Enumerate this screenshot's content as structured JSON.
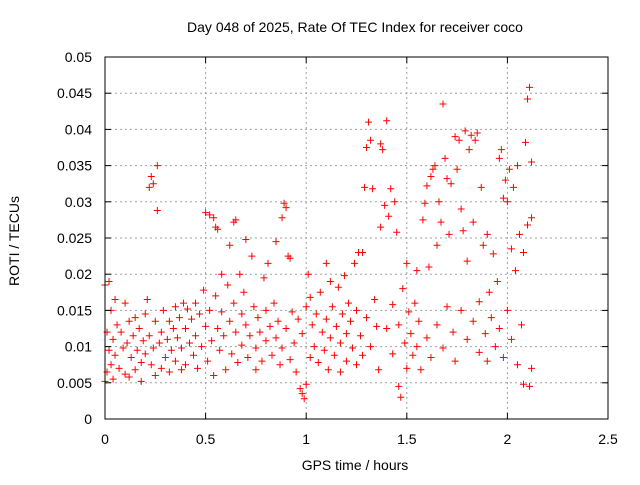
{
  "colors": {
    "background": "#ffffff",
    "axis": "#000000",
    "grid": "#a0a0a0",
    "marker": "#ff0000"
  },
  "chart_data": {
    "type": "scatter",
    "title": "Day 048 of 2025, Rate Of TEC Index for receiver coco",
    "xlabel": "GPS time / hours",
    "ylabel": "ROTI / TECUs",
    "xlim": [
      0,
      2.5
    ],
    "ylim": [
      0,
      0.05
    ],
    "x_ticks": [
      "0",
      "0.5",
      "1",
      "1.5",
      "2",
      "2.5"
    ],
    "y_ticks": [
      "0",
      "0.005",
      "0.01",
      "0.015",
      "0.02",
      "0.025",
      "0.03",
      "0.035",
      "0.04",
      "0.045",
      "0.05"
    ],
    "x_tick_values": [
      0,
      0.5,
      1,
      1.5,
      2,
      2.5
    ],
    "y_tick_values": [
      0,
      0.005,
      0.01,
      0.015,
      0.02,
      0.025,
      0.03,
      0.035,
      0.04,
      0.045,
      0.05
    ],
    "grid": true,
    "marker": "plus",
    "series": [
      {
        "color": "#ff0000",
        "points": [
          [
            0.0,
            0.0185
          ],
          [
            0.0,
            0.0052
          ],
          [
            0.01,
            0.012
          ],
          [
            0.01,
            0.0065
          ],
          [
            0.02,
            0.019
          ],
          [
            0.02,
            0.0095
          ],
          [
            0.03,
            0.015
          ],
          [
            0.03,
            0.0075
          ],
          [
            0.04,
            0.011
          ],
          [
            0.04,
            0.0055
          ],
          [
            0.05,
            0.0165
          ],
          [
            0.05,
            0.0088
          ],
          [
            0.06,
            0.013
          ],
          [
            0.07,
            0.007
          ],
          [
            0.08,
            0.012
          ],
          [
            0.09,
            0.0098
          ],
          [
            0.1,
            0.016
          ],
          [
            0.1,
            0.0062
          ],
          [
            0.11,
            0.0105
          ],
          [
            0.12,
            0.0135
          ],
          [
            0.12,
            0.0058
          ],
          [
            0.13,
            0.0085
          ],
          [
            0.14,
            0.0115
          ],
          [
            0.15,
            0.014
          ],
          [
            0.15,
            0.0068
          ],
          [
            0.16,
            0.0095
          ],
          [
            0.17,
            0.0125
          ],
          [
            0.18,
            0.0078
          ],
          [
            0.18,
            0.0052
          ],
          [
            0.19,
            0.0108
          ],
          [
            0.2,
            0.0145
          ],
          [
            0.2,
            0.009
          ],
          [
            0.21,
            0.0165
          ],
          [
            0.22,
            0.032
          ],
          [
            0.22,
            0.0115
          ],
          [
            0.23,
            0.0335
          ],
          [
            0.23,
            0.0075
          ],
          [
            0.24,
            0.0325
          ],
          [
            0.24,
            0.0098
          ],
          [
            0.25,
            0.0135
          ],
          [
            0.25,
            0.006
          ],
          [
            0.26,
            0.035
          ],
          [
            0.26,
            0.0288
          ],
          [
            0.27,
            0.0105
          ],
          [
            0.28,
            0.012
          ],
          [
            0.28,
            0.007
          ],
          [
            0.29,
            0.015
          ],
          [
            0.3,
            0.0085
          ],
          [
            0.31,
            0.011
          ],
          [
            0.32,
            0.0135
          ],
          [
            0.32,
            0.0065
          ],
          [
            0.33,
            0.0095
          ],
          [
            0.34,
            0.0125
          ],
          [
            0.35,
            0.0155
          ],
          [
            0.35,
            0.008
          ],
          [
            0.36,
            0.0112
          ],
          [
            0.37,
            0.014
          ],
          [
            0.38,
            0.0068
          ],
          [
            0.38,
            0.0098
          ],
          [
            0.39,
            0.016
          ],
          [
            0.4,
            0.0125
          ],
          [
            0.4,
            0.0075
          ],
          [
            0.41,
            0.0152
          ],
          [
            0.42,
            0.0105
          ],
          [
            0.43,
            0.0138
          ],
          [
            0.44,
            0.0088
          ],
          [
            0.45,
            0.016
          ],
          [
            0.45,
            0.0115
          ],
          [
            0.46,
            0.007
          ],
          [
            0.47,
            0.0145
          ],
          [
            0.48,
            0.01
          ],
          [
            0.49,
            0.0178
          ],
          [
            0.5,
            0.0128
          ],
          [
            0.5,
            0.0285
          ],
          [
            0.51,
            0.008
          ],
          [
            0.52,
            0.0282
          ],
          [
            0.52,
            0.015
          ],
          [
            0.53,
            0.0108
          ],
          [
            0.54,
            0.0278
          ],
          [
            0.54,
            0.006
          ],
          [
            0.55,
            0.0265
          ],
          [
            0.55,
            0.017
          ],
          [
            0.56,
            0.0262
          ],
          [
            0.56,
            0.0125
          ],
          [
            0.57,
            0.0095
          ],
          [
            0.58,
            0.0148
          ],
          [
            0.58,
            0.02
          ],
          [
            0.59,
            0.0115
          ],
          [
            0.6,
            0.0068
          ],
          [
            0.61,
            0.0185
          ],
          [
            0.62,
            0.0135
          ],
          [
            0.62,
            0.024
          ],
          [
            0.63,
            0.009
          ],
          [
            0.64,
            0.0272
          ],
          [
            0.64,
            0.016
          ],
          [
            0.65,
            0.0275
          ],
          [
            0.65,
            0.012
          ],
          [
            0.66,
            0.0078
          ],
          [
            0.67,
            0.02
          ],
          [
            0.68,
            0.0145
          ],
          [
            0.68,
            0.0102
          ],
          [
            0.69,
            0.0175
          ],
          [
            0.7,
            0.013
          ],
          [
            0.7,
            0.0248
          ],
          [
            0.71,
            0.0085
          ],
          [
            0.72,
            0.0115
          ],
          [
            0.73,
            0.0225
          ],
          [
            0.74,
            0.0155
          ],
          [
            0.75,
            0.0098
          ],
          [
            0.75,
            0.0068
          ],
          [
            0.76,
            0.014
          ],
          [
            0.77,
            0.012
          ],
          [
            0.78,
            0.008
          ],
          [
            0.79,
            0.0195
          ],
          [
            0.8,
            0.015
          ],
          [
            0.8,
            0.0108
          ],
          [
            0.81,
            0.0215
          ],
          [
            0.82,
            0.0128
          ],
          [
            0.83,
            0.0088
          ],
          [
            0.84,
            0.016
          ],
          [
            0.85,
            0.0245
          ],
          [
            0.85,
            0.0112
          ],
          [
            0.86,
            0.0135
          ],
          [
            0.87,
            0.0075
          ],
          [
            0.88,
            0.0278
          ],
          [
            0.88,
            0.0098
          ],
          [
            0.89,
            0.0298
          ],
          [
            0.9,
            0.0292
          ],
          [
            0.9,
            0.0125
          ],
          [
            0.91,
            0.0225
          ],
          [
            0.92,
            0.0222
          ],
          [
            0.92,
            0.0082
          ],
          [
            0.93,
            0.0148
          ],
          [
            0.94,
            0.0105
          ],
          [
            0.95,
            0.0065
          ],
          [
            0.96,
            0.0138
          ],
          [
            0.97,
            0.0042
          ],
          [
            0.98,
            0.0035
          ],
          [
            0.98,
            0.0118
          ],
          [
            0.99,
            0.0028
          ],
          [
            1.0,
            0.0048
          ],
          [
            1.0,
            0.0155
          ],
          [
            1.01,
            0.02
          ],
          [
            1.02,
            0.0085
          ],
          [
            1.02,
            0.0168
          ],
          [
            1.03,
            0.013
          ],
          [
            1.04,
            0.01
          ],
          [
            1.05,
            0.0145
          ],
          [
            1.06,
            0.0078
          ],
          [
            1.07,
            0.0175
          ],
          [
            1.08,
            0.012
          ],
          [
            1.09,
            0.0095
          ],
          [
            1.1,
            0.0215
          ],
          [
            1.1,
            0.0138
          ],
          [
            1.11,
            0.0068
          ],
          [
            1.12,
            0.019
          ],
          [
            1.12,
            0.0112
          ],
          [
            1.13,
            0.0155
          ],
          [
            1.14,
            0.0088
          ],
          [
            1.15,
            0.0128
          ],
          [
            1.16,
            0.0182
          ],
          [
            1.17,
            0.0105
          ],
          [
            1.17,
            0.0065
          ],
          [
            1.18,
            0.0145
          ],
          [
            1.19,
            0.0198
          ],
          [
            1.2,
            0.0118
          ],
          [
            1.2,
            0.008
          ],
          [
            1.21,
            0.016
          ],
          [
            1.22,
            0.0135
          ],
          [
            1.23,
            0.0098
          ],
          [
            1.24,
            0.0215
          ],
          [
            1.25,
            0.015
          ],
          [
            1.25,
            0.0075
          ],
          [
            1.26,
            0.023
          ],
          [
            1.27,
            0.0115
          ],
          [
            1.28,
            0.023
          ],
          [
            1.28,
            0.0088
          ],
          [
            1.29,
            0.032
          ],
          [
            1.3,
            0.0375
          ],
          [
            1.3,
            0.014
          ],
          [
            1.31,
            0.041
          ],
          [
            1.32,
            0.0385
          ],
          [
            1.32,
            0.01
          ],
          [
            1.33,
            0.0318
          ],
          [
            1.34,
            0.0165
          ],
          [
            1.35,
            0.0128
          ],
          [
            1.36,
            0.0068
          ],
          [
            1.37,
            0.038
          ],
          [
            1.37,
            0.0265
          ],
          [
            1.38,
            0.0372
          ],
          [
            1.39,
            0.0295
          ],
          [
            1.4,
            0.0412
          ],
          [
            1.4,
            0.0125
          ],
          [
            1.41,
            0.028
          ],
          [
            1.42,
            0.0318
          ],
          [
            1.43,
            0.0158
          ],
          [
            1.43,
            0.009
          ],
          [
            1.44,
            0.03
          ],
          [
            1.45,
            0.0258
          ],
          [
            1.46,
            0.013
          ],
          [
            1.46,
            0.0045
          ],
          [
            1.47,
            0.003
          ],
          [
            1.48,
            0.018
          ],
          [
            1.49,
            0.0105
          ],
          [
            1.5,
            0.0215
          ],
          [
            1.5,
            0.007
          ],
          [
            1.51,
            0.0148
          ],
          [
            1.52,
            0.0118
          ],
          [
            1.53,
            0.0088
          ],
          [
            1.54,
            0.016
          ],
          [
            1.55,
            0.0205
          ],
          [
            1.55,
            0.01
          ],
          [
            1.56,
            0.0135
          ],
          [
            1.57,
            0.0068
          ],
          [
            1.58,
            0.0275
          ],
          [
            1.59,
            0.0298
          ],
          [
            1.6,
            0.0322
          ],
          [
            1.6,
            0.0112
          ],
          [
            1.61,
            0.021
          ],
          [
            1.62,
            0.0335
          ],
          [
            1.62,
            0.0085
          ],
          [
            1.63,
            0.0345
          ],
          [
            1.64,
            0.035
          ],
          [
            1.65,
            0.024
          ],
          [
            1.65,
            0.013
          ],
          [
            1.66,
            0.03
          ],
          [
            1.67,
            0.0272
          ],
          [
            1.68,
            0.0435
          ],
          [
            1.68,
            0.0098
          ],
          [
            1.69,
            0.036
          ],
          [
            1.7,
            0.0332
          ],
          [
            1.7,
            0.0155
          ],
          [
            1.71,
            0.0255
          ],
          [
            1.72,
            0.0325
          ],
          [
            1.73,
            0.012
          ],
          [
            1.74,
            0.039
          ],
          [
            1.74,
            0.008
          ],
          [
            1.75,
            0.0345
          ],
          [
            1.76,
            0.0385
          ],
          [
            1.77,
            0.029
          ],
          [
            1.77,
            0.015
          ],
          [
            1.78,
            0.026
          ],
          [
            1.79,
            0.0398
          ],
          [
            1.8,
            0.011
          ],
          [
            1.8,
            0.0218
          ],
          [
            1.81,
            0.0372
          ],
          [
            1.82,
            0.0392
          ],
          [
            1.83,
            0.0135
          ],
          [
            1.83,
            0.0272
          ],
          [
            1.84,
            0.0385
          ],
          [
            1.85,
            0.0395
          ],
          [
            1.86,
            0.0162
          ],
          [
            1.86,
            0.0092
          ],
          [
            1.87,
            0.032
          ],
          [
            1.88,
            0.024
          ],
          [
            1.89,
            0.0118
          ],
          [
            1.9,
            0.0255
          ],
          [
            1.9,
            0.008
          ],
          [
            1.91,
            0.0175
          ],
          [
            1.92,
            0.014
          ],
          [
            1.93,
            0.0228
          ],
          [
            1.94,
            0.01
          ],
          [
            1.95,
            0.019
          ],
          [
            1.96,
            0.036
          ],
          [
            1.96,
            0.0125
          ],
          [
            1.97,
            0.0372
          ],
          [
            1.98,
            0.0305
          ],
          [
            1.98,
            0.0085
          ],
          [
            1.99,
            0.033
          ],
          [
            2.0,
            0.03
          ],
          [
            2.0,
            0.015
          ],
          [
            2.01,
            0.0345
          ],
          [
            2.02,
            0.0235
          ],
          [
            2.02,
            0.011
          ],
          [
            2.03,
            0.032
          ],
          [
            2.04,
            0.0205
          ],
          [
            2.05,
            0.035
          ],
          [
            2.05,
            0.0075
          ],
          [
            2.06,
            0.0255
          ],
          [
            2.07,
            0.013
          ],
          [
            2.08,
            0.023
          ],
          [
            2.08,
            0.0048
          ],
          [
            2.09,
            0.0382
          ],
          [
            2.1,
            0.0442
          ],
          [
            2.1,
            0.0268
          ],
          [
            2.11,
            0.0458
          ],
          [
            2.11,
            0.0045
          ],
          [
            2.12,
            0.0278
          ],
          [
            2.12,
            0.007
          ],
          [
            2.12,
            0.0355
          ]
        ]
      }
    ]
  }
}
